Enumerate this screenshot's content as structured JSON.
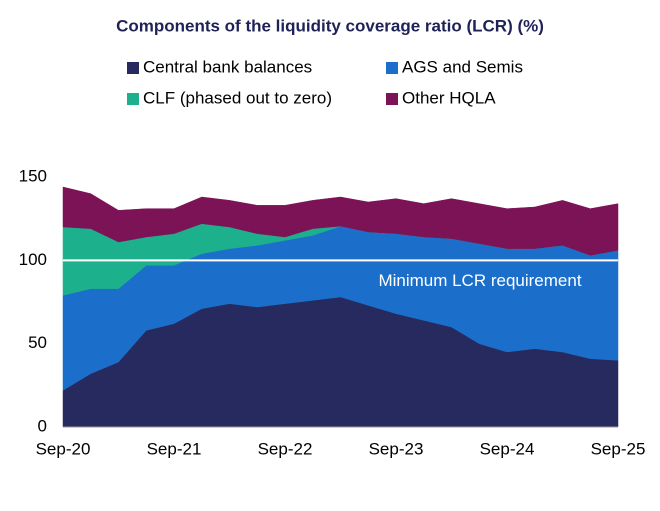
{
  "chart_data": {
    "type": "stacked-area",
    "title": "Components of the liquidity coverage ratio (LCR) (%)",
    "categories": [
      "Sep-20",
      null,
      null,
      null,
      "Sep-21",
      null,
      null,
      null,
      "Sep-22",
      null,
      null,
      null,
      "Sep-23",
      null,
      null,
      null,
      "Sep-24",
      null,
      null,
      null,
      "Sep-25"
    ],
    "series": [
      {
        "name": "Central bank balances",
        "color": "#262a5e",
        "values": [
          22,
          32,
          39,
          58,
          62,
          71,
          74,
          72,
          74,
          76,
          78,
          73,
          68,
          64,
          60,
          50,
          45,
          47,
          45,
          41,
          40
        ]
      },
      {
        "name": "AGS and Semis",
        "color": "#1b6fcb",
        "values": [
          57,
          51,
          44,
          39,
          35,
          33,
          33,
          37,
          38,
          39,
          42.5,
          44,
          48,
          50,
          53,
          60,
          62,
          60,
          64,
          62,
          66
        ]
      },
      {
        "name": "CLF (phased out to zero)",
        "color": "#1db08d",
        "values": [
          41,
          36,
          28,
          17,
          19,
          18,
          13,
          7,
          2,
          4,
          0,
          0,
          0,
          0,
          0,
          0,
          0,
          0,
          0,
          0,
          0
        ]
      },
      {
        "name": "Other HQLA",
        "color": "#7c1356",
        "values": [
          24,
          21,
          19,
          17,
          15,
          16,
          16,
          17,
          19,
          17,
          17.5,
          18,
          21,
          20,
          24,
          24,
          24,
          25,
          27,
          28,
          28
        ]
      }
    ],
    "ylim": [
      0,
      150
    ],
    "yticks": [
      0,
      50,
      100,
      150
    ],
    "reference_line": {
      "value": 100,
      "label": "Minimum LCR requirement",
      "color": "#ffffff"
    }
  }
}
